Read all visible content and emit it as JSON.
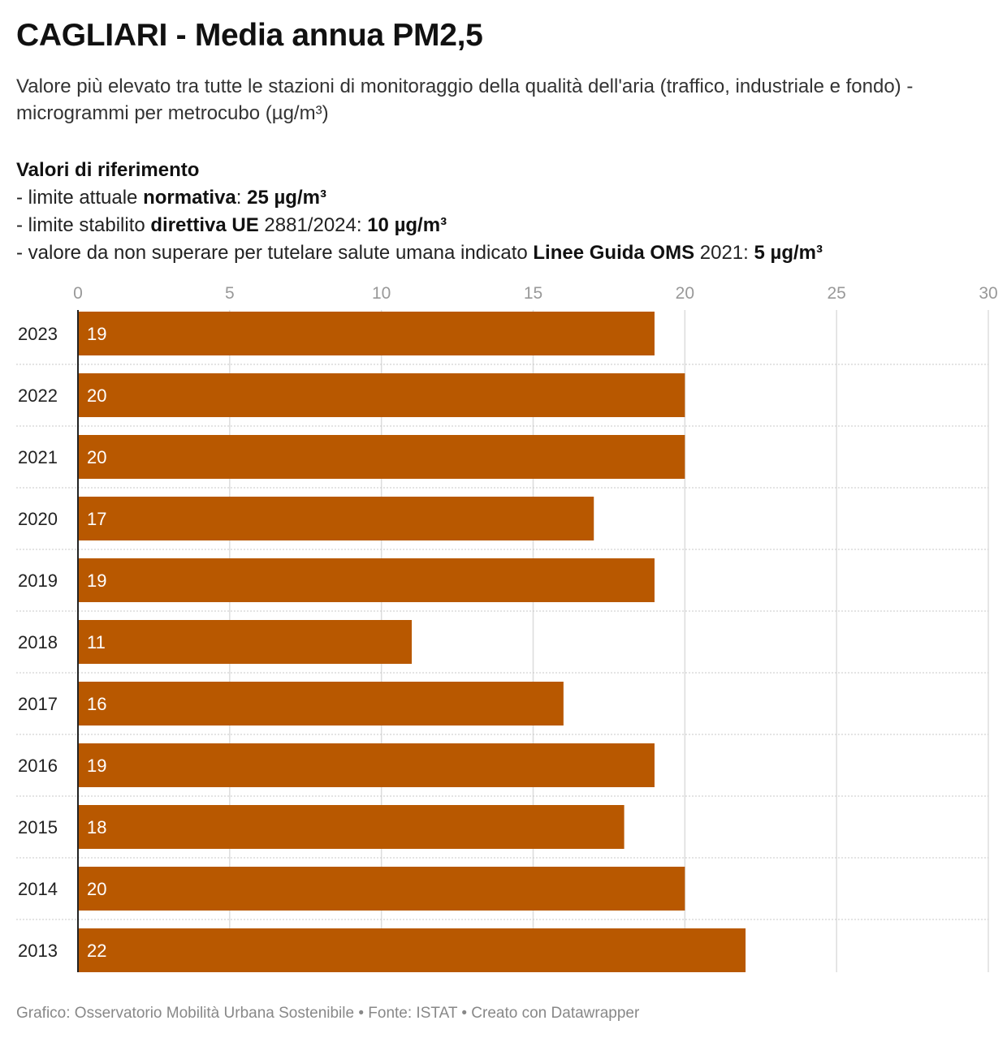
{
  "header": {
    "title": "CAGLIARI - Media annua PM2,5",
    "subtitle": "Valore più elevato tra tutte le stazioni di monitoraggio della qualità dell'aria (traffico, industriale e fondo) - microgrammi per metrocubo (µg/m³)"
  },
  "notes": {
    "heading": "Valori di riferimento",
    "line1": {
      "prefix": "- limite attuale ",
      "bold1": "normativa",
      "mid": ": ",
      "bold2": "25 µg/m³"
    },
    "line2": {
      "prefix": "- limite stabilito ",
      "bold1": "direttiva UE",
      "mid": " 2881/2024: ",
      "bold2": "10 µg/m³"
    },
    "line3": {
      "prefix": "- valore da non superare per tutelare salute umana indicato ",
      "bold1": "Linee Guida OMS",
      "mid": " 2021: ",
      "bold2": "5 µg/m³"
    }
  },
  "footer": {
    "credit": "Grafico: Osservatorio Mobilità Urbana Sostenibile • Fonte: ISTAT • Creato con Datawrapper"
  },
  "chart_data": {
    "type": "bar",
    "orientation": "horizontal",
    "categories": [
      "2023",
      "2022",
      "2021",
      "2020",
      "2019",
      "2018",
      "2017",
      "2016",
      "2015",
      "2014",
      "2013"
    ],
    "values": [
      19,
      20,
      20,
      17,
      19,
      11,
      16,
      19,
      18,
      20,
      22
    ],
    "xlim": [
      0,
      30
    ],
    "xticks": [
      0,
      5,
      10,
      15,
      20,
      25,
      30
    ],
    "bar_color": "#b85800",
    "label_color": "#ffffff",
    "grid": true
  }
}
